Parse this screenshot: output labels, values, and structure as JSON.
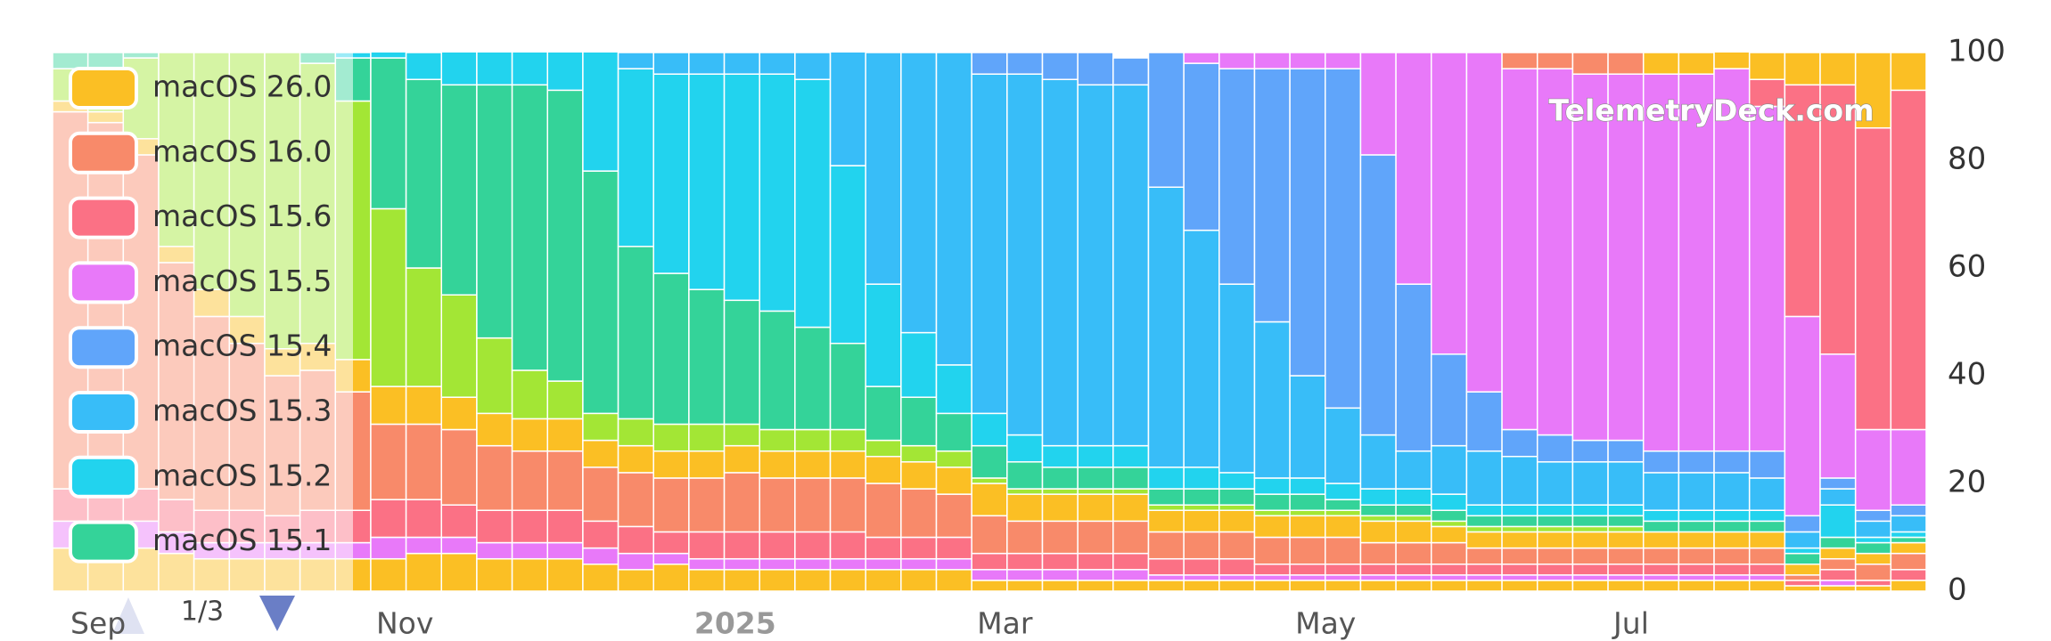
{
  "chart_data": {
    "type": "bar",
    "stacked": true,
    "watermark": "TelemetryDeck.com",
    "legend_page": "1/3",
    "categories": [
      "Sep",
      null,
      null,
      null,
      null,
      null,
      null,
      null,
      null,
      "Nov",
      null,
      null,
      null,
      null,
      null,
      null,
      null,
      null,
      "2025",
      null,
      null,
      null,
      null,
      null,
      null,
      null,
      "Mar",
      null,
      null,
      null,
      null,
      null,
      null,
      null,
      null,
      "May",
      null,
      null,
      null,
      null,
      null,
      null,
      null,
      null,
      "Jul",
      null,
      null,
      null,
      null,
      null,
      null,
      null,
      null
    ],
    "ylim": [
      0,
      100
    ],
    "yticks": [
      0,
      20,
      40,
      60,
      80,
      100
    ],
    "series": [
      {
        "color": "#fbbf24",
        "values": [
          8,
          8,
          8,
          7,
          6,
          6,
          6,
          6,
          6,
          6,
          7,
          7,
          6,
          6,
          6,
          5,
          4,
          5,
          4,
          4,
          4,
          4,
          4,
          4,
          4,
          4,
          2,
          2,
          2,
          2,
          2,
          2,
          2,
          2,
          2,
          2,
          2,
          2,
          2,
          2,
          2,
          2,
          2,
          2,
          2,
          2,
          2,
          2,
          2,
          1,
          1,
          1,
          2
        ]
      },
      {
        "color": "#e879f9",
        "values": [
          5,
          5,
          5,
          4,
          3,
          3,
          3,
          3,
          3,
          4,
          3,
          3,
          3,
          3,
          3,
          3,
          3,
          2,
          2,
          2,
          2,
          2,
          2,
          2,
          2,
          2,
          2,
          2,
          2,
          2,
          2,
          1,
          1,
          1,
          1,
          1,
          1,
          1,
          1,
          1,
          1,
          1,
          1,
          1,
          1,
          1,
          1,
          1,
          1,
          0,
          1,
          0,
          0
        ]
      },
      {
        "color": "#fb7185",
        "values": [
          6,
          6,
          6,
          6,
          6,
          6,
          5,
          6,
          6,
          7,
          7,
          6,
          6,
          6,
          6,
          5,
          5,
          4,
          5,
          5,
          5,
          5,
          5,
          4,
          4,
          4,
          3,
          3,
          3,
          3,
          3,
          3,
          3,
          3,
          2,
          2,
          2,
          2,
          2,
          2,
          2,
          2,
          2,
          2,
          2,
          2,
          2,
          2,
          2,
          1,
          2,
          1,
          2
        ]
      },
      {
        "color": "#f88a6a",
        "values": [
          70,
          68,
          62,
          44,
          36,
          31,
          26,
          26,
          22,
          14,
          14,
          14,
          12,
          11,
          11,
          10,
          10,
          10,
          10,
          11,
          10,
          10,
          10,
          10,
          9,
          8,
          7,
          6,
          6,
          6,
          6,
          5,
          5,
          5,
          5,
          5,
          5,
          4,
          4,
          4,
          3,
          3,
          3,
          3,
          3,
          3,
          3,
          3,
          3,
          1,
          2,
          3,
          3
        ]
      },
      {
        "color": "#fbbf24",
        "values": [
          2,
          2,
          3,
          3,
          5,
          5,
          5,
          5,
          6,
          7,
          7,
          6,
          6,
          6,
          6,
          5,
          5,
          5,
          5,
          5,
          5,
          5,
          5,
          5,
          5,
          5,
          6,
          5,
          5,
          5,
          5,
          4,
          4,
          4,
          4,
          4,
          4,
          4,
          4,
          3,
          3,
          3,
          3,
          3,
          3,
          3,
          3,
          3,
          3,
          2,
          2,
          2,
          2
        ]
      },
      {
        "color": "#a3e635",
        "values": [
          6,
          8,
          15,
          36,
          44,
          49,
          55,
          52,
          48,
          33,
          22,
          19,
          14,
          9,
          7,
          5,
          5,
          5,
          5,
          4,
          4,
          4,
          4,
          3,
          3,
          3,
          1,
          1,
          1,
          1,
          1,
          1,
          1,
          1,
          1,
          1,
          1,
          1,
          1,
          1,
          1,
          1,
          1,
          1,
          1,
          0,
          0,
          0,
          0,
          0,
          0,
          0,
          0
        ]
      },
      {
        "name": "macOS 15.1",
        "color": "#34d399",
        "values": [
          3,
          3,
          1,
          0,
          0,
          0,
          0,
          2,
          8,
          28,
          35,
          39,
          47,
          53,
          54,
          45,
          32,
          28,
          25,
          23,
          22,
          19,
          16,
          10,
          9,
          7,
          6,
          5,
          4,
          4,
          4,
          3,
          3,
          3,
          3,
          3,
          2,
          2,
          2,
          2,
          2,
          2,
          2,
          2,
          2,
          2,
          2,
          2,
          2,
          2,
          2,
          2,
          1
        ]
      },
      {
        "name": "macOS 15.2",
        "color": "#22d3ee",
        "values": [
          0,
          0,
          0,
          0,
          0,
          0,
          0,
          0,
          1,
          2,
          5,
          7,
          7,
          7,
          8,
          23,
          33,
          37,
          40,
          42,
          44,
          46,
          33,
          19,
          12,
          9,
          6,
          5,
          4,
          4,
          4,
          4,
          4,
          3,
          3,
          3,
          3,
          3,
          3,
          3,
          2,
          2,
          2,
          2,
          2,
          2,
          2,
          2,
          2,
          1,
          6,
          1,
          1
        ]
      },
      {
        "name": "macOS 15.3",
        "color": "#38bdf8",
        "values": [
          0,
          0,
          0,
          0,
          0,
          0,
          0,
          0,
          0,
          0,
          0,
          0,
          0,
          0,
          0,
          0,
          3,
          4,
          4,
          4,
          4,
          5,
          22,
          43,
          52,
          58,
          63,
          67,
          68,
          67,
          67,
          52,
          44,
          35,
          29,
          19,
          14,
          10,
          7,
          9,
          10,
          9,
          8,
          8,
          8,
          7,
          7,
          7,
          6,
          3,
          3,
          3,
          3
        ]
      },
      {
        "name": "macOS 15.4",
        "color": "#60a5fa",
        "values": [
          0,
          0,
          0,
          0,
          0,
          0,
          0,
          0,
          0,
          0,
          0,
          0,
          0,
          0,
          0,
          0,
          0,
          0,
          0,
          0,
          0,
          0,
          0,
          0,
          0,
          0,
          4,
          4,
          5,
          6,
          5,
          25,
          31,
          40,
          47,
          57,
          63,
          52,
          31,
          17,
          11,
          5,
          5,
          4,
          4,
          4,
          4,
          4,
          5,
          3,
          2,
          2,
          2
        ]
      },
      {
        "name": "macOS 15.5",
        "color": "#e879f9",
        "values": [
          0,
          0,
          0,
          0,
          0,
          0,
          0,
          0,
          0,
          0,
          0,
          0,
          0,
          0,
          0,
          0,
          0,
          0,
          0,
          0,
          0,
          0,
          0,
          0,
          0,
          0,
          0,
          0,
          0,
          0,
          0,
          0,
          2,
          3,
          3,
          3,
          3,
          19,
          43,
          56,
          63,
          67,
          68,
          68,
          68,
          70,
          70,
          71,
          64,
          37,
          23,
          15,
          14
        ]
      },
      {
        "name": "macOS 15.6",
        "color": "#fb7185",
        "values": [
          0,
          0,
          0,
          0,
          0,
          0,
          0,
          0,
          0,
          0,
          0,
          0,
          0,
          0,
          0,
          0,
          0,
          0,
          0,
          0,
          0,
          0,
          0,
          0,
          0,
          0,
          0,
          0,
          0,
          0,
          0,
          0,
          0,
          0,
          0,
          0,
          0,
          0,
          0,
          0,
          0,
          0,
          0,
          0,
          0,
          0,
          0,
          0,
          5,
          43,
          50,
          56,
          63
        ]
      },
      {
        "name": "macOS 16.0",
        "color": "#f88a6a",
        "values": [
          0,
          0,
          0,
          0,
          0,
          0,
          0,
          0,
          0,
          0,
          0,
          0,
          0,
          0,
          0,
          0,
          0,
          0,
          0,
          0,
          0,
          0,
          0,
          0,
          0,
          0,
          0,
          0,
          0,
          0,
          0,
          0,
          0,
          0,
          0,
          0,
          0,
          0,
          0,
          0,
          0,
          3,
          3,
          4,
          4,
          0,
          0,
          0,
          0,
          0,
          0,
          0,
          0
        ]
      },
      {
        "name": "macOS 26.0",
        "color": "#fbbf24",
        "values": [
          0,
          0,
          0,
          0,
          0,
          0,
          0,
          0,
          0,
          0,
          0,
          0,
          0,
          0,
          0,
          0,
          0,
          0,
          0,
          0,
          0,
          0,
          0,
          0,
          0,
          0,
          0,
          0,
          0,
          0,
          0,
          0,
          0,
          0,
          0,
          0,
          0,
          0,
          0,
          0,
          0,
          0,
          0,
          0,
          0,
          4,
          4,
          4,
          5,
          6,
          6,
          14,
          7
        ]
      }
    ]
  }
}
